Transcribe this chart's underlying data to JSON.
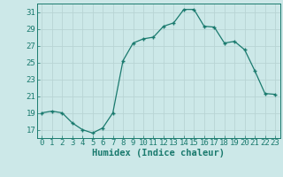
{
  "x": [
    0,
    1,
    2,
    3,
    4,
    5,
    6,
    7,
    8,
    9,
    10,
    11,
    12,
    13,
    14,
    15,
    16,
    17,
    18,
    19,
    20,
    21,
    22,
    23
  ],
  "y": [
    19,
    19.2,
    19,
    17.8,
    17,
    16.6,
    17.2,
    19,
    25.2,
    27.3,
    27.8,
    28.0,
    29.3,
    29.7,
    31.3,
    31.3,
    29.3,
    29.2,
    27.3,
    27.5,
    26.5,
    24.0,
    21.3,
    21.2
  ],
  "line_color": "#1a7a6e",
  "marker_color": "#1a7a6e",
  "bg_color": "#cce8e8",
  "grid_color": "#b8d4d4",
  "axis_color": "#1a7a6e",
  "xlabel": "Humidex (Indice chaleur)",
  "ylim": [
    16,
    32
  ],
  "xlim": [
    -0.5,
    23.5
  ],
  "yticks": [
    17,
    19,
    21,
    23,
    25,
    27,
    29,
    31
  ],
  "xticks": [
    0,
    1,
    2,
    3,
    4,
    5,
    6,
    7,
    8,
    9,
    10,
    11,
    12,
    13,
    14,
    15,
    16,
    17,
    18,
    19,
    20,
    21,
    22,
    23
  ],
  "xlabel_fontsize": 7.5,
  "tick_fontsize": 6.5
}
